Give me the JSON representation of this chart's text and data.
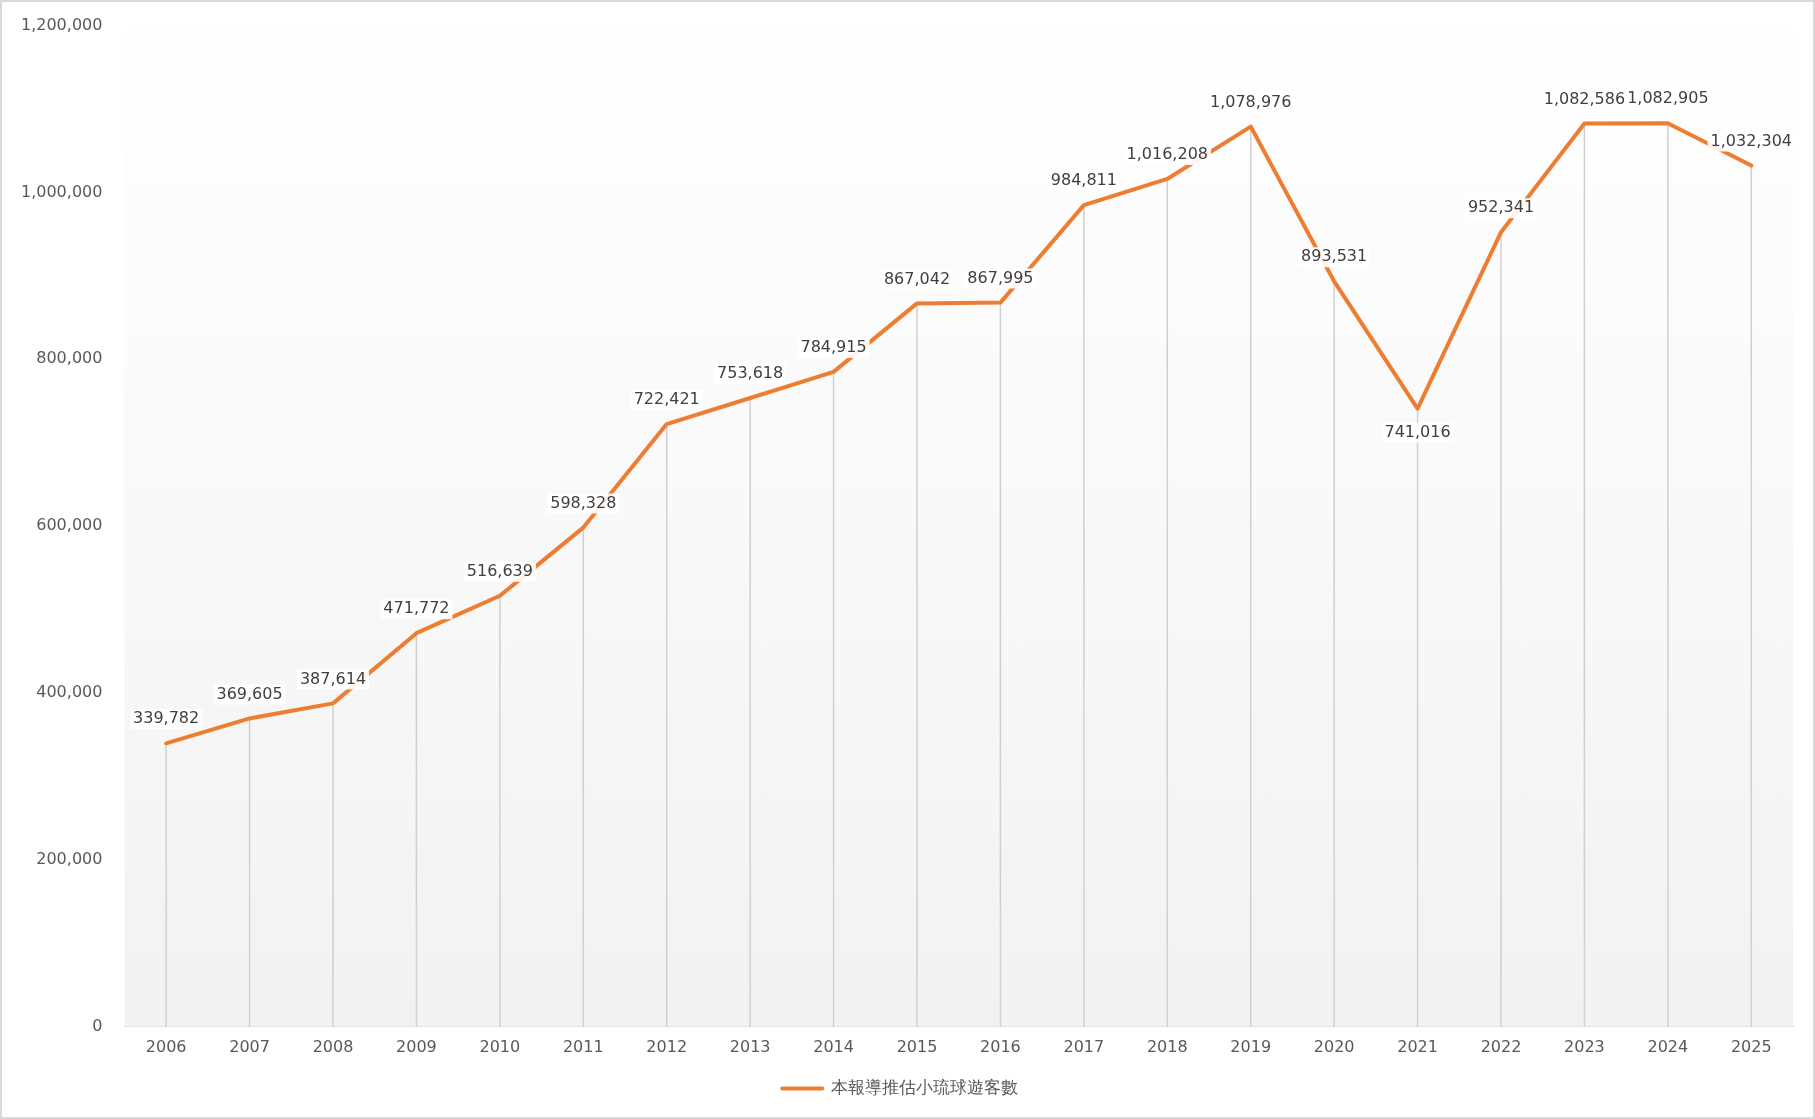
{
  "chart_data": {
    "type": "line",
    "categories": [
      "2006",
      "2007",
      "2008",
      "2009",
      "2010",
      "2011",
      "2012",
      "2013",
      "2014",
      "2015",
      "2016",
      "2017",
      "2018",
      "2019",
      "2020",
      "2021",
      "2022",
      "2023",
      "2024",
      "2025"
    ],
    "series": [
      {
        "name": "本報導推估小琉球遊客數",
        "color": "#ed7d31",
        "values": [
          339782,
          369605,
          387614,
          471772,
          516639,
          598328,
          722421,
          753618,
          784915,
          867042,
          867995,
          984811,
          1016208,
          1078976,
          893531,
          741016,
          952341,
          1082586,
          1082905,
          1032304
        ],
        "value_labels": [
          "339,782",
          "369,605",
          "387,614",
          "471,772",
          "516,639",
          "598,328",
          "722,421",
          "753,618",
          "784,915",
          "867,042",
          "867,995",
          "984,811",
          "1,016,208",
          "1,078,976",
          "893,531",
          "741,016",
          "952,341",
          "1,082,586",
          "1,082,905",
          "1,032,304"
        ]
      }
    ],
    "ylim": [
      0,
      1200000
    ],
    "yticks": [
      0,
      {
        "value": 200000,
        "label": "200,000"
      },
      {
        "value": 400000,
        "label": "400,000"
      },
      {
        "value": 600000,
        "label": "600,000"
      },
      {
        "value": 800000,
        "label": "800,000"
      },
      {
        "value": 1000000,
        "label": "1,000,000"
      },
      {
        "value": 1200000,
        "label": "1,200,000"
      }
    ],
    "grid": "x",
    "legend": "bottom",
    "marker": "none",
    "line_style": "solid"
  }
}
